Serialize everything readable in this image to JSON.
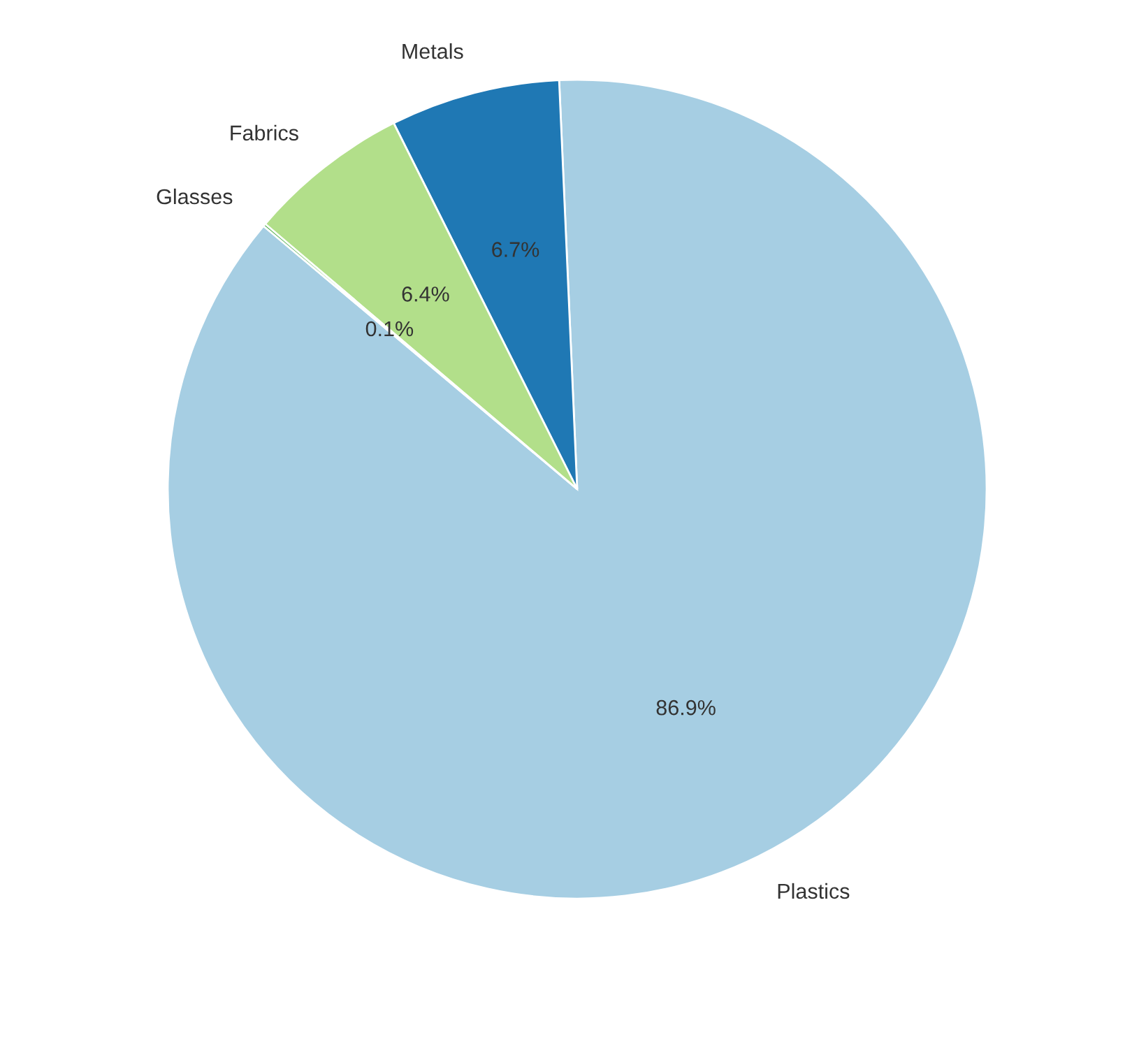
{
  "chart_data": {
    "type": "pie",
    "categories": [
      "Plastics",
      "Metals",
      "Fabrics",
      "Glasses"
    ],
    "values": [
      86.9,
      6.7,
      6.4,
      0.1
    ],
    "value_labels": [
      "86.9%",
      "6.7%",
      "6.4%",
      "0.1%"
    ],
    "colors": [
      "#a6cee3",
      "#1f78b4",
      "#b2df8a",
      "#33a02c"
    ]
  }
}
